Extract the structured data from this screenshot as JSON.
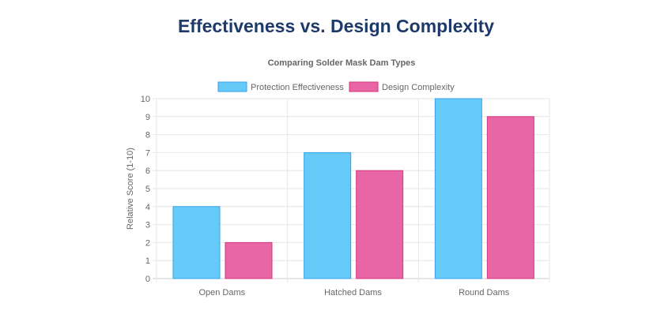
{
  "page_title": "Effectiveness vs. Design Complexity",
  "chart_data": {
    "type": "bar",
    "title": "Comparing Solder Mask Dam Types",
    "xlabel": "",
    "ylabel": "Relative Score (1-10)",
    "ylim": [
      0,
      10
    ],
    "yticks": [
      "0",
      "1",
      "2",
      "3",
      "4",
      "5",
      "6",
      "7",
      "8",
      "9",
      "10"
    ],
    "grid": true,
    "legend_position": "top",
    "categories": [
      "Open Dams",
      "Hatched Dams",
      "Round Dams"
    ],
    "series": [
      {
        "name": "Protection Effectiveness",
        "values": [
          4,
          7,
          10
        ],
        "color": "#66caf9",
        "border": "#36a2eb"
      },
      {
        "name": "Design Complexity",
        "values": [
          2,
          6,
          9
        ],
        "color": "#e966a6",
        "border": "#d6337f"
      }
    ]
  }
}
